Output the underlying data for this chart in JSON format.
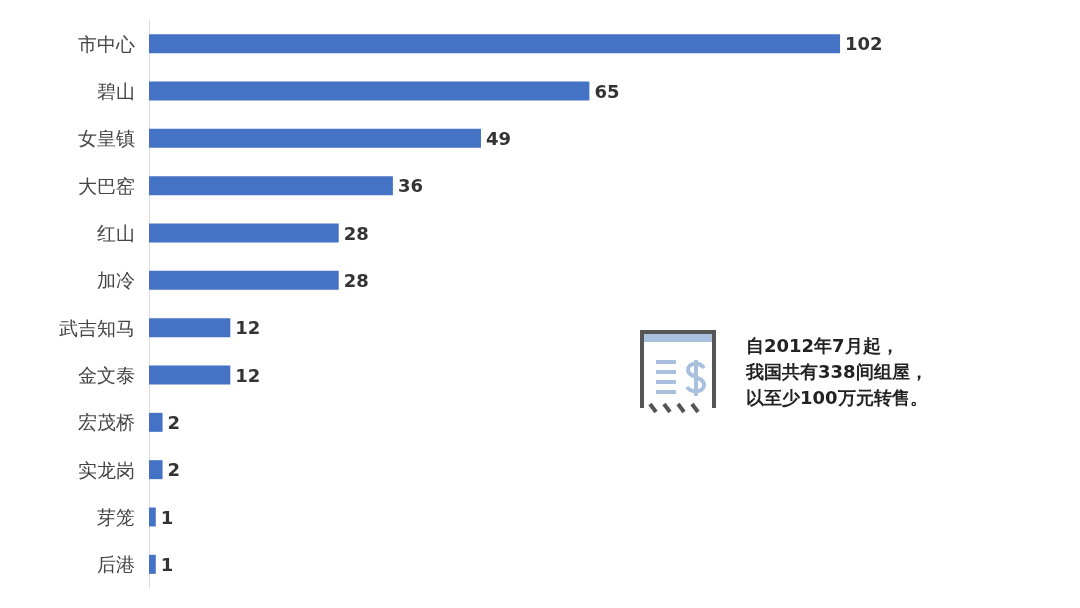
{
  "chart_data": {
    "type": "bar",
    "orientation": "horizontal",
    "categories": [
      "市中心",
      "碧山",
      "女皇镇",
      "大巴窑",
      "红山",
      "加冷",
      "武吉知马",
      "金文泰",
      "宏茂桥",
      "实龙岗",
      "芽笼",
      "后港"
    ],
    "values": [
      102,
      65,
      49,
      36,
      28,
      28,
      12,
      12,
      2,
      2,
      1,
      1
    ],
    "color": "#4472c4",
    "data_labels": true,
    "annotations": [
      "自2012年7月起，",
      "我国共有338间组屋，",
      "以至少100万元转售。"
    ]
  }
}
